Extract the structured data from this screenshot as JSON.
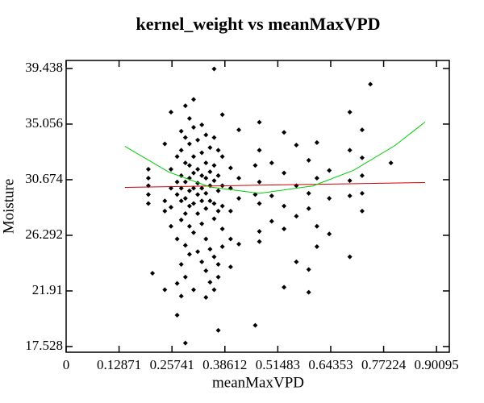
{
  "chart_data": {
    "type": "scatter",
    "title": "kernel_weight vs meanMaxVPD",
    "xlabel": "meanMaxVPD",
    "ylabel": "Moisture",
    "xlim": [
      0,
      0.932
    ],
    "ylim": [
      17.08,
      40.07
    ],
    "xticks": [
      0,
      0.12871,
      0.25741,
      0.38612,
      0.51483,
      0.64353,
      0.77224,
      0.90095
    ],
    "yticks": [
      17.528,
      21.91,
      26.292,
      30.674,
      35.056,
      39.438
    ],
    "series": [
      {
        "type": "scatter",
        "color": "#000000",
        "x": [
          0.2,
          0.2,
          0.2,
          0.2,
          0.2,
          0.21,
          0.24,
          0.24,
          0.24,
          0.24,
          0.255,
          0.255,
          0.255,
          0.255,
          0.255,
          0.27,
          0.27,
          0.27,
          0.27,
          0.27,
          0.27,
          0.28,
          0.28,
          0.28,
          0.28,
          0.28,
          0.28,
          0.28,
          0.28,
          0.29,
          0.29,
          0.29,
          0.29,
          0.29,
          0.29,
          0.29,
          0.29,
          0.29,
          0.3,
          0.3,
          0.3,
          0.3,
          0.3,
          0.3,
          0.3,
          0.3,
          0.31,
          0.31,
          0.31,
          0.31,
          0.31,
          0.31,
          0.31,
          0.31,
          0.32,
          0.32,
          0.32,
          0.32,
          0.32,
          0.32,
          0.33,
          0.33,
          0.33,
          0.33,
          0.33,
          0.33,
          0.33,
          0.34,
          0.34,
          0.34,
          0.34,
          0.34,
          0.34,
          0.34,
          0.34,
          0.35,
          0.35,
          0.35,
          0.35,
          0.35,
          0.35,
          0.36,
          0.36,
          0.36,
          0.36,
          0.36,
          0.36,
          0.36,
          0.36,
          0.37,
          0.37,
          0.37,
          0.37,
          0.37,
          0.37,
          0.37,
          0.38,
          0.38,
          0.38,
          0.38,
          0.38,
          0.38,
          0.4,
          0.4,
          0.4,
          0.4,
          0.4,
          0.42,
          0.42,
          0.42,
          0.42,
          0.46,
          0.46,
          0.46,
          0.47,
          0.47,
          0.47,
          0.47,
          0.47,
          0.47,
          0.5,
          0.5,
          0.5,
          0.53,
          0.53,
          0.53,
          0.53,
          0.53,
          0.56,
          0.56,
          0.56,
          0.56,
          0.59,
          0.59,
          0.59,
          0.59,
          0.59,
          0.61,
          0.61,
          0.61,
          0.61,
          0.64,
          0.64,
          0.64,
          0.69,
          0.69,
          0.69,
          0.69,
          0.69,
          0.72,
          0.72,
          0.72,
          0.72,
          0.72,
          0.74,
          0.79
        ],
        "values": [
          31.5,
          30.2,
          29.5,
          28.8,
          30.8,
          23.3,
          29.0,
          28.2,
          22.0,
          33.5,
          36.0,
          31.5,
          30.0,
          28.5,
          27.0,
          32.5,
          30.5,
          29.5,
          26.0,
          22.5,
          20.0,
          34.5,
          33.0,
          31.0,
          30.0,
          29.0,
          27.5,
          24.0,
          21.5,
          36.5,
          34.0,
          32.0,
          30.5,
          29.2,
          28.0,
          25.5,
          23.0,
          17.8,
          35.5,
          33.5,
          31.8,
          30.8,
          29.8,
          28.6,
          27.0,
          24.8,
          37.0,
          34.8,
          32.5,
          31.2,
          30.0,
          28.8,
          26.5,
          22.0,
          33.8,
          31.5,
          30.4,
          29.5,
          28.0,
          25.0,
          35.0,
          32.8,
          31.0,
          30.0,
          29.0,
          27.2,
          24.2,
          34.2,
          32.0,
          30.8,
          29.6,
          28.4,
          26.0,
          23.5,
          21.4,
          33.2,
          31.3,
          30.2,
          29.0,
          25.2,
          22.6,
          39.4,
          34.0,
          31.8,
          30.6,
          28.8,
          27.6,
          24.6,
          22.0,
          33.0,
          31.0,
          29.8,
          28.2,
          24.0,
          23.0,
          18.8,
          35.8,
          32.5,
          30.2,
          28.6,
          26.8,
          25.4,
          31.6,
          30.0,
          28.2,
          26.0,
          23.8,
          34.6,
          30.8,
          29.2,
          25.6,
          31.8,
          29.5,
          19.2,
          35.2,
          33.0,
          30.5,
          28.8,
          26.6,
          25.8,
          32.0,
          29.4,
          27.4,
          34.4,
          31.2,
          28.6,
          26.8,
          22.2,
          33.4,
          30.2,
          27.8,
          24.2,
          32.2,
          29.6,
          28.4,
          23.6,
          21.8,
          33.6,
          30.8,
          27.0,
          25.4,
          31.4,
          29.2,
          26.4,
          36.0,
          33.0,
          30.6,
          29.4,
          24.6,
          34.6,
          32.4,
          31.0,
          29.6,
          28.2,
          38.2,
          32.0
        ]
      },
      {
        "type": "line",
        "color": "#cc0000",
        "x": [
          0.143,
          0.873
        ],
        "values": [
          30.07,
          30.45
        ]
      },
      {
        "type": "line",
        "color": "#00cc00",
        "x": [
          0.143,
          0.25,
          0.35,
          0.47,
          0.6,
          0.7,
          0.8,
          0.873
        ],
        "values": [
          33.3,
          31.27,
          30.1,
          29.6,
          30.18,
          31.43,
          33.37,
          35.22
        ]
      }
    ]
  }
}
